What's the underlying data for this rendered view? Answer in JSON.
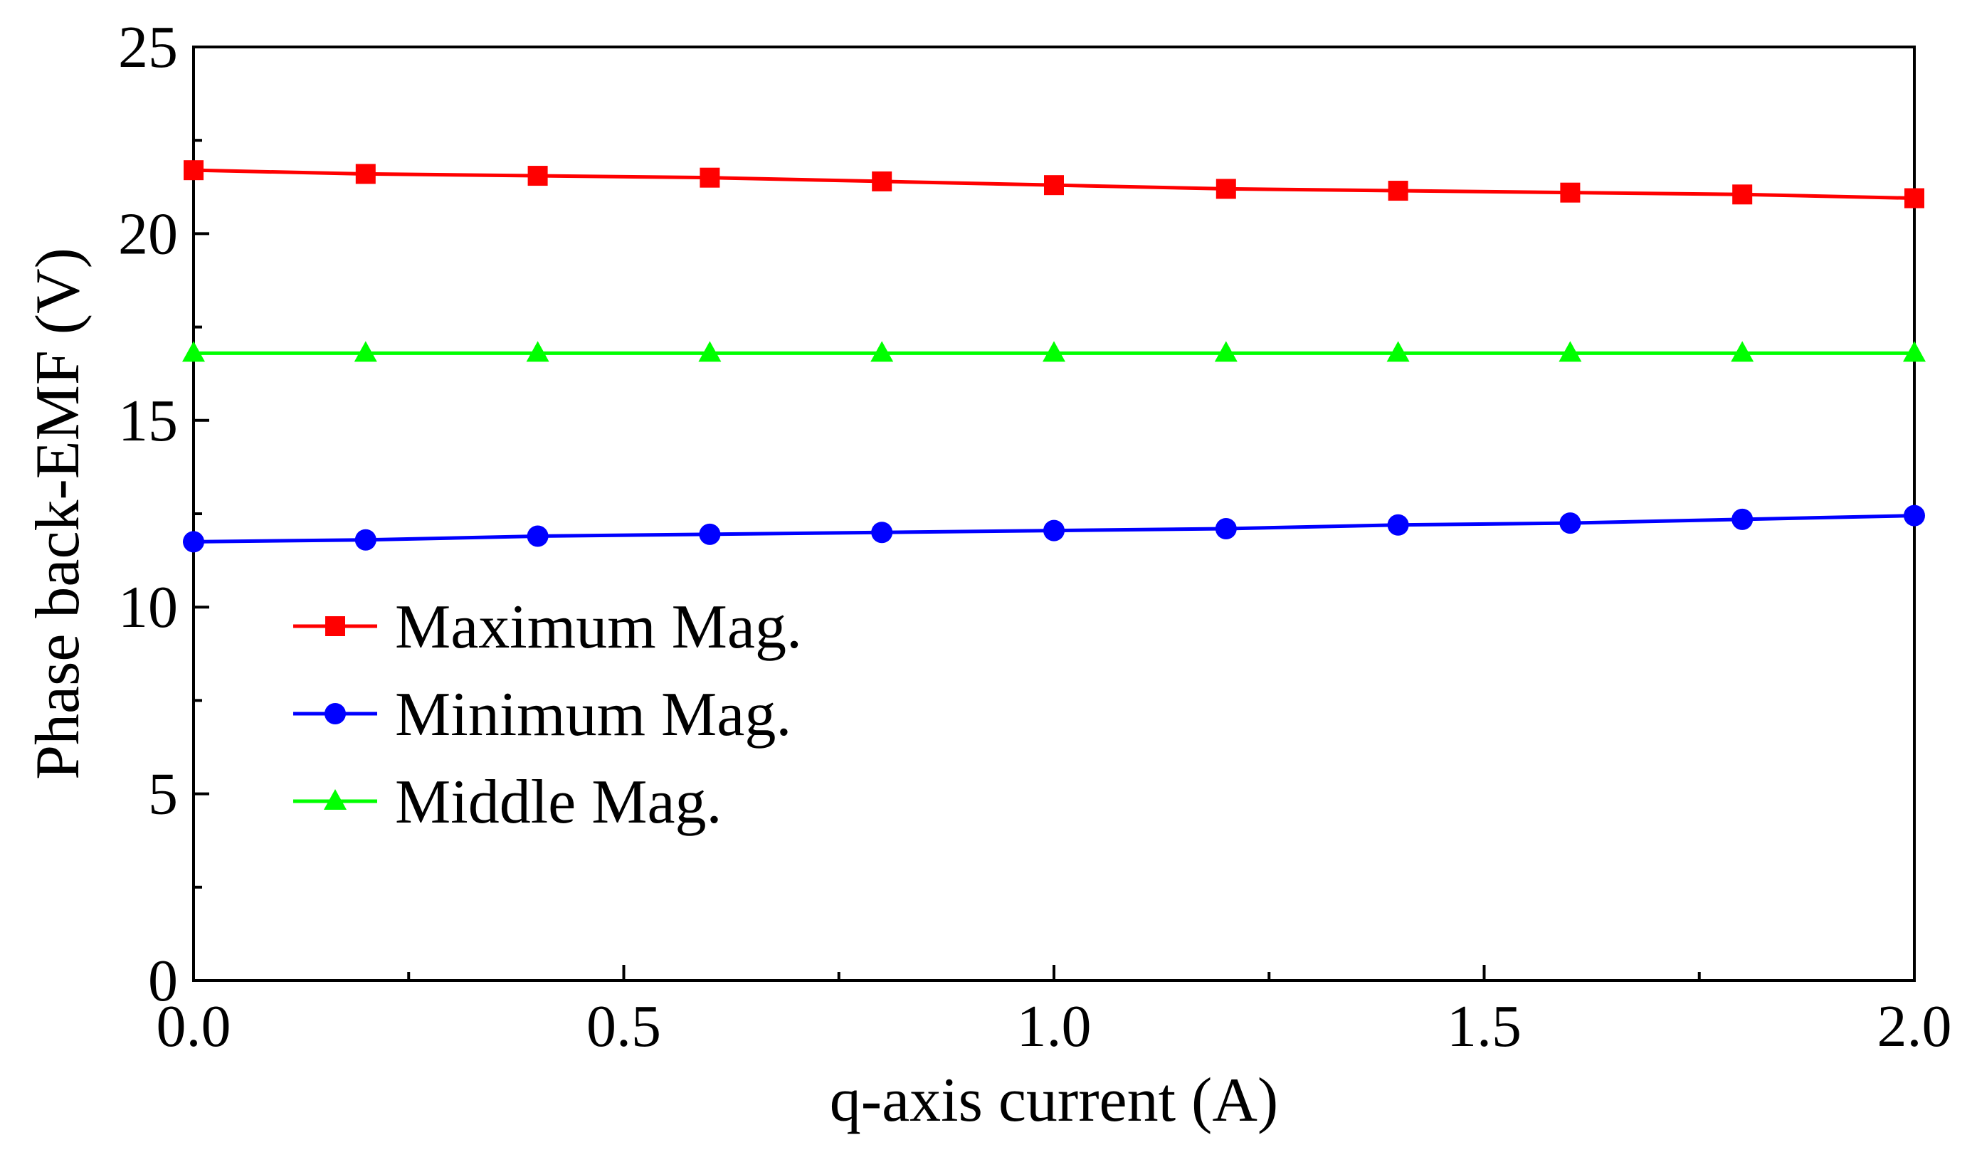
{
  "chart_data": {
    "type": "line",
    "title": "",
    "xlabel": "q-axis current (A)",
    "ylabel": "Phase back-EMF (V)",
    "xlim": [
      0,
      2.0
    ],
    "ylim": [
      0,
      25
    ],
    "x_ticks": [
      "0.0",
      "0.5",
      "1.0",
      "1.5",
      "2.0"
    ],
    "y_ticks": [
      "0",
      "5",
      "10",
      "15",
      "20",
      "25"
    ],
    "x": [
      0.0,
      0.2,
      0.4,
      0.6,
      0.8,
      1.0,
      1.2,
      1.4,
      1.6,
      1.8,
      2.0
    ],
    "legend_position": "middle-left",
    "series": [
      {
        "name": "Maximum Mag.",
        "color": "#ff0000",
        "marker": "square",
        "values": [
          21.7,
          21.6,
          21.55,
          21.5,
          21.4,
          21.3,
          21.2,
          21.15,
          21.1,
          21.05,
          20.95
        ]
      },
      {
        "name": "Minimum Mag.",
        "color": "#0000ff",
        "marker": "circle",
        "values": [
          11.75,
          11.8,
          11.9,
          11.95,
          12.0,
          12.05,
          12.1,
          12.2,
          12.25,
          12.35,
          12.45
        ]
      },
      {
        "name": "Middle Mag.",
        "color": "#00ff00",
        "marker": "triangle",
        "values": [
          16.8,
          16.8,
          16.8,
          16.8,
          16.8,
          16.8,
          16.8,
          16.8,
          16.8,
          16.8,
          16.8
        ]
      }
    ]
  }
}
